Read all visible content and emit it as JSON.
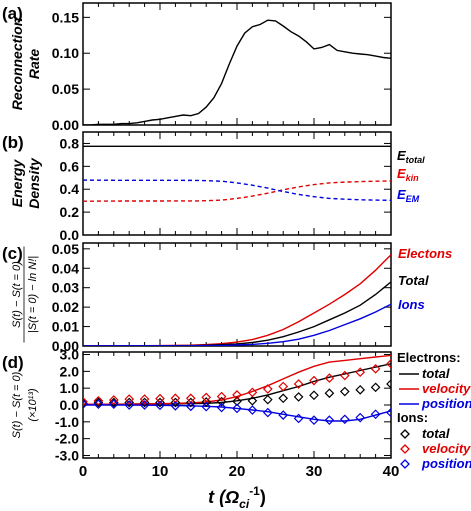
{
  "chart_data": [
    {
      "panel": "(a)",
      "type": "line",
      "ylabel": [
        "Reconnection",
        "Rate"
      ],
      "ylim": [
        0,
        0.17
      ],
      "yticks": [
        "0.00",
        "0.05",
        "0.10",
        "0.15"
      ],
      "yticks_v": [
        0,
        0.05,
        0.1,
        0.15
      ],
      "series": [
        {
          "color": "#000000",
          "dash": false,
          "x": [
            0,
            1,
            2,
            3,
            4,
            5,
            6,
            7,
            8,
            9,
            10,
            11,
            12,
            13,
            14,
            15,
            16,
            17,
            18,
            19,
            20,
            21,
            22,
            23,
            24,
            25,
            26,
            27,
            28,
            29,
            30,
            31,
            32,
            33,
            34,
            35,
            36,
            37,
            38,
            39,
            40
          ],
          "y": [
            0,
            0,
            0.001,
            0.001,
            0.001,
            0.002,
            0.002,
            0.003,
            0.005,
            0.007,
            0.008,
            0.01,
            0.012,
            0.014,
            0.013,
            0.016,
            0.025,
            0.038,
            0.058,
            0.085,
            0.11,
            0.128,
            0.137,
            0.14,
            0.146,
            0.145,
            0.138,
            0.13,
            0.124,
            0.116,
            0.106,
            0.108,
            0.112,
            0.104,
            0.102,
            0.1,
            0.099,
            0.098,
            0.096,
            0.094,
            0.093
          ]
        }
      ]
    },
    {
      "panel": "(b)",
      "type": "line",
      "ylabel": [
        "Energy",
        "Density"
      ],
      "ylim": [
        0,
        0.9
      ],
      "yticks": [
        "0.0",
        "0.2",
        "0.4",
        "0.6",
        "0.8"
      ],
      "yticks_v": [
        0,
        0.2,
        0.4,
        0.6,
        0.8
      ],
      "series": [
        {
          "name": "E",
          "sub": "total",
          "color": "#000000",
          "dash": false,
          "x": [
            0,
            40
          ],
          "y": [
            0.775,
            0.775
          ]
        },
        {
          "name": "E",
          "sub": "kin",
          "color": "#e00000",
          "dash": true,
          "x": [
            0,
            5,
            10,
            15,
            18,
            20,
            22,
            24,
            26,
            28,
            30,
            32,
            34,
            36,
            38,
            40
          ],
          "y": [
            0.295,
            0.297,
            0.297,
            0.298,
            0.305,
            0.32,
            0.34,
            0.365,
            0.395,
            0.42,
            0.44,
            0.455,
            0.462,
            0.467,
            0.47,
            0.472
          ]
        },
        {
          "name": "E",
          "sub": "EM",
          "color": "#0000e0",
          "dash": true,
          "x": [
            0,
            5,
            10,
            15,
            18,
            20,
            22,
            24,
            26,
            28,
            30,
            32,
            34,
            36,
            38,
            40
          ],
          "y": [
            0.48,
            0.478,
            0.478,
            0.477,
            0.47,
            0.455,
            0.435,
            0.41,
            0.38,
            0.355,
            0.335,
            0.32,
            0.313,
            0.308,
            0.305,
            0.303
          ]
        }
      ]
    },
    {
      "panel": "(c)",
      "type": "line",
      "ylabel_num": "S(t) − S(t = 0)",
      "ylabel_den": "|S(t = 0) − ln N!|",
      "ylim": [
        0,
        0.053
      ],
      "yticks": [
        "0.00",
        "0.01",
        "0.02",
        "0.03",
        "0.04",
        "0.05"
      ],
      "yticks_v": [
        0,
        0.01,
        0.02,
        0.03,
        0.04,
        0.05
      ],
      "series": [
        {
          "name": "Electons",
          "color": "#e00000",
          "dash": false,
          "x": [
            0,
            10,
            14,
            16,
            18,
            20,
            22,
            24,
            26,
            28,
            30,
            32,
            34,
            36,
            38,
            40
          ],
          "y": [
            0,
            0.0002,
            0.0004,
            0.0007,
            0.0012,
            0.002,
            0.0033,
            0.0055,
            0.0085,
            0.0125,
            0.017,
            0.0215,
            0.0265,
            0.032,
            0.039,
            0.047
          ]
        },
        {
          "name": "Total",
          "color": "#000000",
          "dash": false,
          "x": [
            0,
            10,
            14,
            16,
            18,
            20,
            22,
            24,
            26,
            28,
            30,
            32,
            34,
            36,
            38,
            40
          ],
          "y": [
            0,
            0.0001,
            0.0002,
            0.0004,
            0.0007,
            0.0011,
            0.0018,
            0.003,
            0.0048,
            0.0072,
            0.01,
            0.0135,
            0.017,
            0.021,
            0.0265,
            0.033
          ]
        },
        {
          "name": "Ions",
          "color": "#0000e0",
          "dash": false,
          "x": [
            0,
            10,
            14,
            16,
            18,
            20,
            22,
            24,
            26,
            28,
            30,
            32,
            34,
            36,
            38,
            40
          ],
          "y": [
            0,
            0.0001,
            0.0001,
            0.0002,
            0.0003,
            0.0005,
            0.0008,
            0.0014,
            0.0022,
            0.0035,
            0.0055,
            0.008,
            0.011,
            0.014,
            0.0175,
            0.0215
          ]
        }
      ]
    },
    {
      "panel": "(d)",
      "type": "line",
      "ylabel_num": "S(t) − S(t = 0)",
      "ylabel_den": "(×10¹³)",
      "ylim": [
        -3.15,
        3.15
      ],
      "yticks": [
        "-3.0",
        "-2.0",
        "-1.0",
        "0.0",
        "1.0",
        "2.0",
        "3.0"
      ],
      "yticks_v": [
        -3,
        -2,
        -1,
        0,
        1,
        2,
        3
      ],
      "xlabel": "t (Ω",
      "xlabel_sub": "ci",
      "xlabel_sup": "-1",
      "xlabel_close": ")",
      "xlim": [
        0,
        40
      ],
      "xticks": [
        "0",
        "10",
        "20",
        "30",
        "40"
      ],
      "xticks_v": [
        0,
        10,
        20,
        30,
        40
      ],
      "legend_headers": [
        "Electrons:",
        "Ions:"
      ],
      "series": [
        {
          "name": "total",
          "group": "Electrons",
          "color": "#000000",
          "dash": false,
          "marker": "none",
          "x": [
            0,
            2,
            4,
            6,
            8,
            10,
            12,
            14,
            16,
            18,
            20,
            22,
            24,
            26,
            28,
            30,
            32,
            34,
            36,
            38,
            40
          ],
          "y": [
            0.05,
            0.05,
            0.05,
            0.05,
            0.06,
            0.06,
            0.07,
            0.08,
            0.1,
            0.15,
            0.25,
            0.4,
            0.6,
            0.85,
            1.1,
            1.4,
            1.65,
            1.85,
            2.05,
            2.25,
            2.45
          ]
        },
        {
          "name": "velocity",
          "group": "Electrons",
          "color": "#e00000",
          "dash": false,
          "marker": "none",
          "x": [
            0,
            2,
            4,
            6,
            8,
            10,
            12,
            14,
            16,
            18,
            20,
            22,
            24,
            26,
            28,
            30,
            32,
            34,
            36,
            38,
            40
          ],
          "y": [
            0.05,
            0.05,
            0.05,
            0.06,
            0.07,
            0.08,
            0.1,
            0.12,
            0.18,
            0.3,
            0.5,
            0.8,
            1.15,
            1.55,
            1.95,
            2.3,
            2.55,
            2.65,
            2.75,
            2.85,
            2.95
          ]
        },
        {
          "name": "position",
          "group": "Electrons",
          "color": "#0000e0",
          "dash": false,
          "marker": "none",
          "x": [
            0,
            2,
            4,
            6,
            8,
            10,
            12,
            14,
            16,
            18,
            20,
            22,
            24,
            26,
            28,
            30,
            32,
            34,
            36,
            38,
            40
          ],
          "y": [
            0,
            0,
            0,
            0,
            -0.01,
            -0.02,
            -0.03,
            -0.05,
            -0.08,
            -0.12,
            -0.2,
            -0.3,
            -0.4,
            -0.55,
            -0.7,
            -0.85,
            -0.95,
            -0.95,
            -0.85,
            -0.6,
            -0.35
          ]
        },
        {
          "name": "total",
          "group": "Ions",
          "color": "#000000",
          "dash": false,
          "marker": "diamond",
          "x": [
            0,
            2,
            4,
            6,
            8,
            10,
            12,
            14,
            16,
            18,
            20,
            22,
            24,
            26,
            28,
            30,
            32,
            34,
            36,
            38,
            40
          ],
          "y": [
            0.1,
            0.15,
            0.15,
            0.15,
            0.15,
            0.15,
            0.15,
            0.15,
            0.18,
            0.2,
            0.22,
            0.25,
            0.32,
            0.4,
            0.48,
            0.58,
            0.7,
            0.8,
            0.9,
            1.05,
            1.25
          ]
        },
        {
          "name": "velocity",
          "group": "Ions",
          "color": "#e00000",
          "dash": false,
          "marker": "diamond",
          "x": [
            0,
            2,
            4,
            6,
            8,
            10,
            12,
            14,
            16,
            18,
            20,
            22,
            24,
            26,
            28,
            30,
            32,
            34,
            36,
            38,
            40
          ],
          "y": [
            0.2,
            0.25,
            0.3,
            0.35,
            0.35,
            0.38,
            0.4,
            0.4,
            0.45,
            0.5,
            0.6,
            0.75,
            0.95,
            1.1,
            1.25,
            1.45,
            1.6,
            1.75,
            1.95,
            2.15,
            2.45
          ]
        },
        {
          "name": "position",
          "group": "Ions",
          "color": "#0000e0",
          "dash": false,
          "marker": "diamond",
          "x": [
            0,
            2,
            4,
            6,
            8,
            10,
            12,
            14,
            16,
            18,
            20,
            22,
            24,
            26,
            28,
            30,
            32,
            34,
            36,
            38,
            40
          ],
          "y": [
            0.05,
            0.05,
            0.05,
            0.0,
            0.0,
            -0.02,
            -0.05,
            -0.08,
            -0.1,
            -0.15,
            -0.2,
            -0.3,
            -0.45,
            -0.6,
            -0.8,
            -0.9,
            -0.9,
            -0.85,
            -0.75,
            -0.55,
            -0.45
          ]
        }
      ]
    }
  ]
}
